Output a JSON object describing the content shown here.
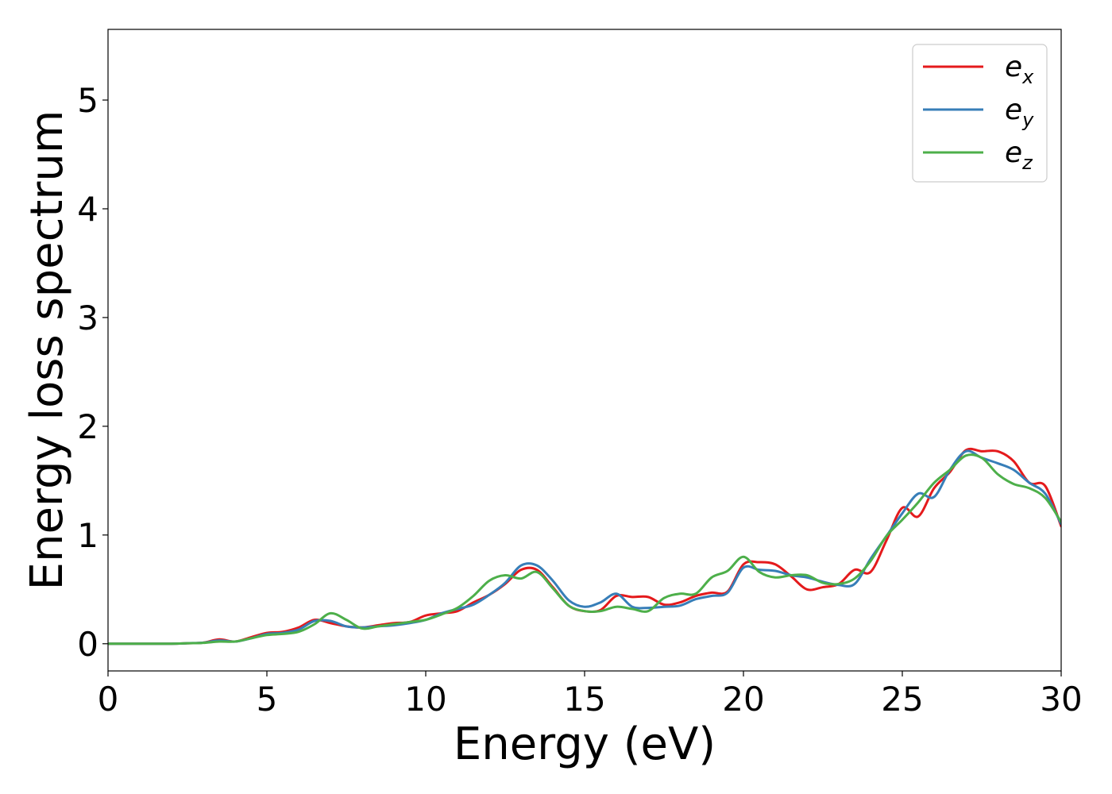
{
  "chart_data": {
    "type": "line",
    "xlabel": "Energy (eV)",
    "ylabel": "Energy loss spectrum",
    "xlim": [
      0,
      30
    ],
    "ylim": [
      -0.25,
      5.65
    ],
    "xticks": [
      "0",
      "5",
      "10",
      "15",
      "20",
      "25",
      "30"
    ],
    "yticks": [
      "0",
      "1",
      "2",
      "3",
      "4",
      "5"
    ],
    "grid": false,
    "legend_position": "top-right",
    "series": [
      {
        "name": "e",
        "subscript": "x",
        "color": "#e41a1c",
        "x": [
          0,
          1,
          2,
          2.5,
          3,
          3.5,
          4,
          4.5,
          5,
          5.5,
          6,
          6.5,
          7,
          7.5,
          8,
          8.5,
          9,
          9.5,
          10,
          10.5,
          11,
          11.5,
          12,
          12.5,
          13,
          13.5,
          14,
          14.5,
          15,
          15.5,
          16,
          16.5,
          17,
          17.5,
          18,
          18.5,
          19,
          19.5,
          20,
          20.5,
          21,
          21.5,
          22,
          22.5,
          23,
          23.5,
          24,
          24.5,
          25,
          25.5,
          26,
          26.5,
          27,
          27.5,
          28,
          28.5,
          29,
          29.5,
          30
        ],
        "y": [
          0,
          0,
          0,
          0.005,
          0.01,
          0.04,
          0.02,
          0.06,
          0.1,
          0.11,
          0.15,
          0.22,
          0.19,
          0.16,
          0.15,
          0.17,
          0.19,
          0.2,
          0.26,
          0.28,
          0.3,
          0.38,
          0.45,
          0.55,
          0.68,
          0.68,
          0.52,
          0.35,
          0.3,
          0.31,
          0.44,
          0.43,
          0.43,
          0.36,
          0.38,
          0.44,
          0.47,
          0.48,
          0.73,
          0.75,
          0.73,
          0.62,
          0.5,
          0.52,
          0.55,
          0.68,
          0.66,
          0.95,
          1.25,
          1.17,
          1.43,
          1.58,
          1.78,
          1.77,
          1.77,
          1.68,
          1.48,
          1.45,
          1.08
        ]
      },
      {
        "name": "e",
        "subscript": "y",
        "color": "#377eb8",
        "x": [
          0,
          1,
          2,
          2.5,
          3,
          3.5,
          4,
          4.5,
          5,
          5.5,
          6,
          6.5,
          7,
          7.5,
          8,
          8.5,
          9,
          9.5,
          10,
          10.5,
          11,
          11.5,
          12,
          12.5,
          13,
          13.5,
          14,
          14.5,
          15,
          15.5,
          16,
          16.5,
          17,
          17.5,
          18,
          18.5,
          19,
          19.5,
          20,
          20.5,
          21,
          21.5,
          22,
          22.5,
          23,
          23.5,
          24,
          24.5,
          25,
          25.5,
          26,
          26.5,
          27,
          27.5,
          28,
          28.5,
          29,
          29.5,
          30
        ],
        "y": [
          0,
          0,
          0,
          0.005,
          0.01,
          0.03,
          0.02,
          0.05,
          0.09,
          0.1,
          0.13,
          0.21,
          0.21,
          0.16,
          0.15,
          0.16,
          0.17,
          0.19,
          0.22,
          0.28,
          0.32,
          0.36,
          0.45,
          0.56,
          0.72,
          0.72,
          0.58,
          0.4,
          0.34,
          0.38,
          0.46,
          0.34,
          0.33,
          0.34,
          0.35,
          0.41,
          0.44,
          0.47,
          0.7,
          0.68,
          0.67,
          0.63,
          0.61,
          0.57,
          0.54,
          0.55,
          0.78,
          0.99,
          1.2,
          1.38,
          1.35,
          1.6,
          1.77,
          1.71,
          1.66,
          1.6,
          1.48,
          1.38,
          1.1
        ]
      },
      {
        "name": "e",
        "subscript": "z",
        "color": "#4daf4a",
        "x": [
          0,
          1,
          2,
          2.5,
          3,
          3.5,
          4,
          4.5,
          5,
          5.5,
          6,
          6.5,
          7,
          7.5,
          8,
          8.5,
          9,
          9.5,
          10,
          10.5,
          11,
          11.5,
          12,
          12.5,
          13,
          13.5,
          14,
          14.5,
          15,
          15.5,
          16,
          16.5,
          17,
          17.5,
          18,
          18.5,
          19,
          19.5,
          20,
          20.5,
          21,
          21.5,
          22,
          22.5,
          23,
          23.5,
          24,
          24.5,
          25,
          25.5,
          26,
          26.5,
          27,
          27.5,
          28,
          28.5,
          29,
          29.5,
          30
        ],
        "y": [
          0,
          0,
          0,
          0.005,
          0.008,
          0.02,
          0.02,
          0.05,
          0.08,
          0.09,
          0.11,
          0.18,
          0.28,
          0.22,
          0.14,
          0.16,
          0.18,
          0.2,
          0.22,
          0.27,
          0.33,
          0.44,
          0.58,
          0.63,
          0.6,
          0.66,
          0.51,
          0.35,
          0.3,
          0.3,
          0.34,
          0.32,
          0.3,
          0.42,
          0.46,
          0.46,
          0.61,
          0.67,
          0.8,
          0.66,
          0.61,
          0.63,
          0.63,
          0.56,
          0.55,
          0.6,
          0.76,
          0.99,
          1.14,
          1.3,
          1.48,
          1.6,
          1.73,
          1.71,
          1.56,
          1.47,
          1.43,
          1.34,
          1.12
        ]
      }
    ]
  }
}
